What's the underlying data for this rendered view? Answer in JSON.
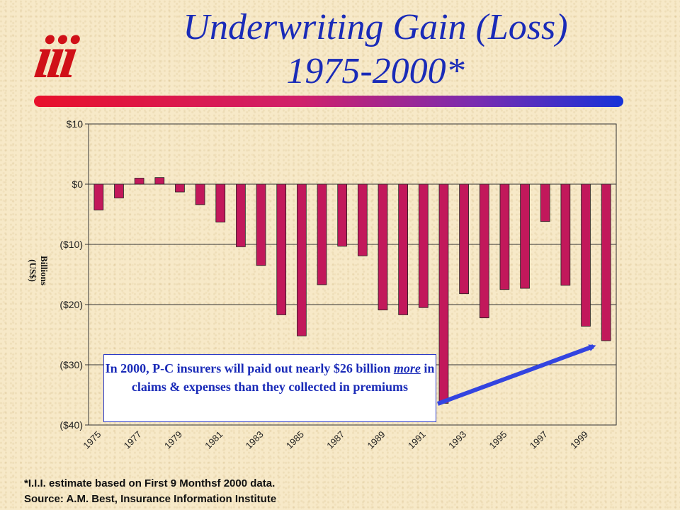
{
  "logo_text": "iii",
  "title_line1": "Underwriting Gain (Loss)",
  "title_line2": "1975-2000*",
  "y_axis_label_1": "Billions",
  "y_axis_label_2": "(US$)",
  "callout": {
    "part1": "In 2000, P-C insurers will paid out nearly $26 billion ",
    "emphasis": "more",
    "part2": " in claims & expenses than they collected in premiums"
  },
  "footnote_1": "*I.I.I. estimate based on First 9 Monthsf 2000 data.",
  "footnote_2": "Source:  A.M. Best, Insurance Information Institute",
  "colors": {
    "bar": "#c2185b",
    "title": "#1a2bb8",
    "arrow": "#3344e0"
  },
  "chart_data": {
    "type": "bar",
    "categories": [
      "1975",
      "1976",
      "1977",
      "1978",
      "1979",
      "1980",
      "1981",
      "1982",
      "1983",
      "1984",
      "1985",
      "1986",
      "1987",
      "1988",
      "1989",
      "1990",
      "1991",
      "1992",
      "1993",
      "1994",
      "1995",
      "1996",
      "1997",
      "1998",
      "1999",
      "2000"
    ],
    "values": [
      -4.3,
      -2.3,
      1.0,
      1.1,
      -1.3,
      -3.4,
      -6.3,
      -10.4,
      -13.5,
      -21.7,
      -25.2,
      -16.7,
      -10.3,
      -11.9,
      -20.9,
      -21.7,
      -20.5,
      -36.4,
      -18.2,
      -22.2,
      -17.5,
      -17.3,
      -6.2,
      -16.8,
      -23.6,
      -26.0
    ],
    "tick_labels": [
      "1975",
      "1977",
      "1979",
      "1981",
      "1983",
      "1985",
      "1987",
      "1989",
      "1991",
      "1993",
      "1995",
      "1997",
      "1999"
    ],
    "y_ticks": [
      10,
      0,
      -10,
      -20,
      -30,
      -40
    ],
    "y_tick_labels": [
      "$10",
      "$0",
      "($10)",
      "($20)",
      "($30)",
      "($40)"
    ],
    "ylim": [
      -40,
      10
    ],
    "grid": true,
    "title": "",
    "xlabel": "",
    "ylabel": "Billions (US$)"
  }
}
